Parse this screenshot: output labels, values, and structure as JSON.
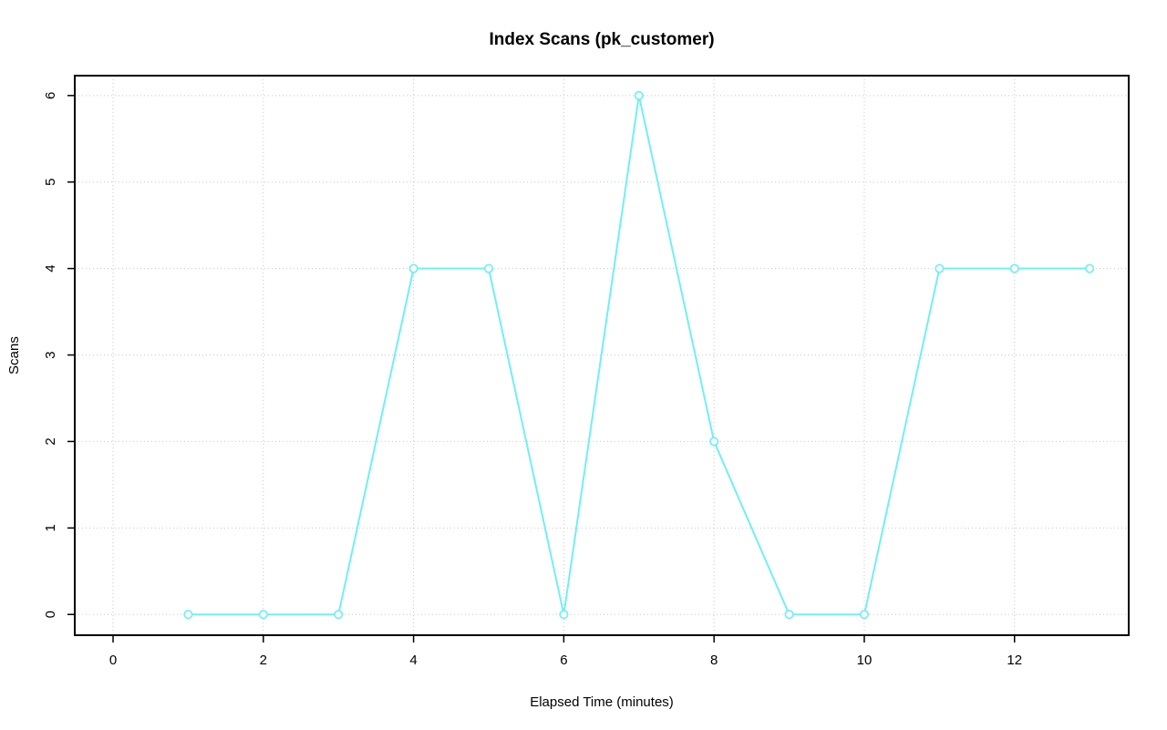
{
  "page": {
    "background_color": "#FFFFFF"
  },
  "chart_data": {
    "type": "line",
    "title": "Index Scans (pk_customer)",
    "xlabel": "Elapsed Time (minutes)",
    "ylabel": "Scans",
    "x": [
      1,
      2,
      3,
      4,
      5,
      6,
      7,
      8,
      9,
      10,
      11,
      12,
      13
    ],
    "y": [
      0,
      0,
      0,
      4,
      4,
      0,
      6,
      2,
      0,
      0,
      4,
      4,
      4
    ],
    "xticks": [
      0,
      2,
      4,
      6,
      8,
      10,
      12
    ],
    "yticks": [
      0,
      1,
      2,
      3,
      4,
      5,
      6
    ],
    "xlim": [
      -0.51,
      13.52
    ],
    "ylim": [
      -0.24,
      6.23
    ],
    "grid": true,
    "grid_style": "dotted",
    "legend": "none",
    "marker": "open-circle",
    "colors": {
      "line": "#72EFF2",
      "marker": "#72EFF2",
      "grid": "#C8C8C8",
      "axis": "#000000",
      "text": "#000000"
    }
  }
}
